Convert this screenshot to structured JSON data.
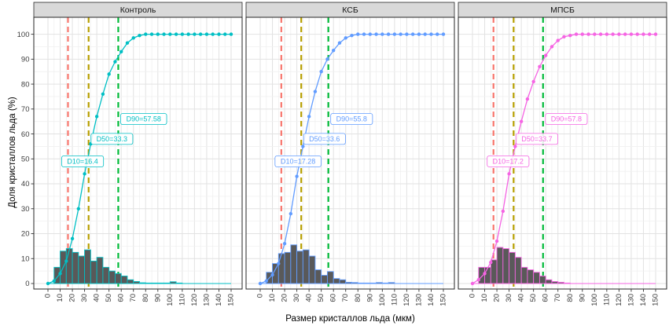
{
  "figure": {
    "x_axis_title": "Размер кристаллов льда (мкм)",
    "y_axis_title": "Доля кристаллов льда (%)",
    "background": "#FFFFFF",
    "panel_bg": "#FFFFFF",
    "grid_major": "#E2E2E2",
    "grid_minor": "#F0F0F0",
    "strip_bg": "#D9D9D9",
    "strip_border": "#262626",
    "panel_border": "#262626",
    "axis_text_color": "#3C3C3C",
    "bar_fill": "#595959"
  },
  "chart_data": {
    "type": "line",
    "subtype": "faceted cumulative ice-crystal size distribution curves with size histograms, D10/D50/D90 reference lines",
    "title": "",
    "xlabel": "Размер кристаллов льда (мкм)",
    "ylabel": "Доля кристаллов льда (%)",
    "xlim": [
      0,
      150
    ],
    "ylim": [
      0,
      100
    ],
    "grid": true,
    "x_ticks": [
      0,
      10,
      20,
      30,
      40,
      50,
      60,
      70,
      80,
      90,
      100,
      110,
      120,
      130,
      140,
      150
    ],
    "y_ticks": [
      0,
      10,
      20,
      30,
      40,
      50,
      60,
      70,
      80,
      90,
      100
    ],
    "curve_x": [
      0,
      5,
      10,
      15,
      20,
      25,
      30,
      35,
      40,
      45,
      50,
      55,
      60,
      65,
      70,
      75,
      80,
      85,
      90,
      95,
      100,
      105,
      110,
      115,
      120,
      125,
      130,
      135,
      140,
      145,
      150
    ],
    "histogram_bin_width": 5,
    "vline_colors": {
      "d10": "#F8766D",
      "d50": "#B79F00",
      "d90": "#00BA38"
    },
    "panels": [
      {
        "title": "Контроль",
        "color": "#00BFC4",
        "cumulative": [
          0,
          1,
          4,
          9,
          18,
          30,
          44,
          56,
          67,
          76,
          84,
          89,
          93,
          96.5,
          98.5,
          99.5,
          100,
          100,
          100,
          100,
          100,
          100,
          100,
          100,
          100,
          100,
          100,
          100,
          100,
          100,
          100
        ],
        "histogram": [
          0,
          6.5,
          13,
          14,
          12.5,
          11,
          13.5,
          9,
          10.5,
          6.5,
          5,
          4,
          3,
          1.5,
          0.8,
          0.3,
          0.2,
          0.2,
          0.2,
          0.2,
          0.7,
          0.2,
          0,
          0,
          0,
          0,
          0,
          0,
          0,
          0
        ],
        "d10": 16.4,
        "d10_label": "D10=16.4",
        "d50": 33.3,
        "d50_label": "D50=33.3",
        "d90": 57.58,
        "d90_label": "D90=57.58"
      },
      {
        "title": "КСБ",
        "color": "#619CFF",
        "cumulative": [
          0,
          1,
          3.5,
          8,
          16,
          28,
          43,
          55,
          67,
          77,
          85,
          90,
          93.5,
          96.5,
          98.5,
          99.5,
          100,
          100,
          100,
          100,
          100,
          100,
          100,
          100,
          100,
          100,
          100,
          100,
          100,
          100,
          100
        ],
        "histogram": [
          0,
          4.5,
          8,
          12,
          12.5,
          15.5,
          13,
          13.5,
          11,
          5.5,
          3.3,
          4.8,
          2,
          1.5,
          0.5,
          0.4,
          0.2,
          0.2,
          0.2,
          0.4,
          0.2,
          0.4,
          0,
          0,
          0,
          0,
          0,
          0,
          0,
          0
        ],
        "d10": 17.28,
        "d10_label": "D10=17.28",
        "d50": 33.6,
        "d50_label": "D50=33.6",
        "d90": 55.8,
        "d90_label": "D90=55.8"
      },
      {
        "title": "МПСБ",
        "color": "#F564E3",
        "cumulative": [
          0,
          1.5,
          4,
          8.5,
          17,
          29,
          44,
          55,
          65,
          74,
          81,
          87,
          91.5,
          95,
          97.5,
          99,
          99.5,
          100,
          100,
          100,
          100,
          100,
          100,
          100,
          100,
          100,
          100,
          100,
          100,
          100,
          100
        ],
        "histogram": [
          0,
          6.5,
          6.5,
          9.5,
          14.5,
          14,
          12.5,
          10.5,
          6.5,
          5.5,
          4.5,
          3,
          1.5,
          0.8,
          0.5,
          0.2,
          0,
          0,
          0,
          0,
          0,
          0,
          0,
          0,
          0,
          0,
          0,
          0,
          0,
          0
        ],
        "d10": 17.2,
        "d10_label": "D10=17.2",
        "d50": 33.7,
        "d50_label": "D50=33.7",
        "d90": 57.8,
        "d90_label": "D90=57.8"
      }
    ]
  }
}
